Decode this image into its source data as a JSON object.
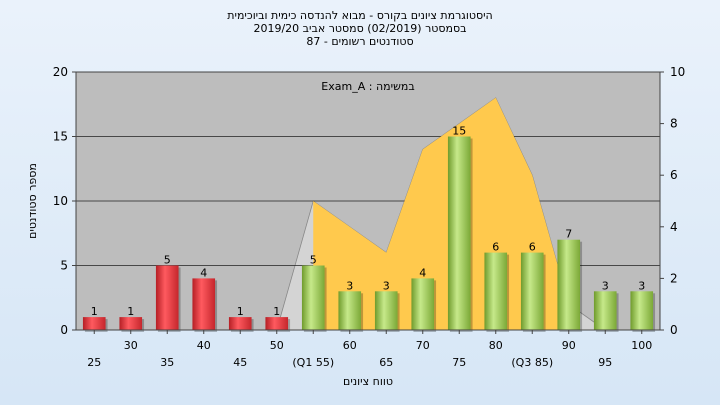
{
  "title_lines": [
    "היסטוגרמת ציונים בקורס - מבוא להנדסה כימית וביוכימית",
    "בסמסטר  (02/2019)  סמסטר אביב 2019/20",
    "סטודנטים רשומים - 87"
  ],
  "chart_data": {
    "type": "bar",
    "annotation": "במשימה : Exam_A",
    "xlabel": "טווח ציונים",
    "ylabel": "מספר סטודנטים",
    "categories": [
      "25",
      "30",
      "35",
      "40",
      "45",
      "50",
      "(Q1 55)",
      "60",
      "65",
      "70",
      "75",
      "80",
      "(Q3 85)",
      "90",
      "95",
      "100"
    ],
    "values": [
      1,
      1,
      5,
      4,
      1,
      1,
      5,
      3,
      3,
      4,
      15,
      6,
      6,
      7,
      3,
      3
    ],
    "ylim": [
      0,
      20
    ],
    "y_ticks": [
      "0",
      "5",
      "10",
      "15",
      "20"
    ],
    "y2lim": [
      0,
      10
    ],
    "y2_ticks": [
      "0",
      "2",
      "4",
      "6",
      "8",
      "10"
    ],
    "area_series": {
      "values": [
        0,
        0,
        0,
        0,
        0,
        0,
        5,
        4,
        3,
        7,
        8,
        9,
        6,
        1,
        0,
        0
      ]
    },
    "colors": {
      "bar_low": "#e8393f",
      "bar_high": "#9bc94f",
      "area": "#ffc94d",
      "plot_bg": "#bdbdbd",
      "gray_area": "#d4d4d4"
    },
    "grid": true
  }
}
